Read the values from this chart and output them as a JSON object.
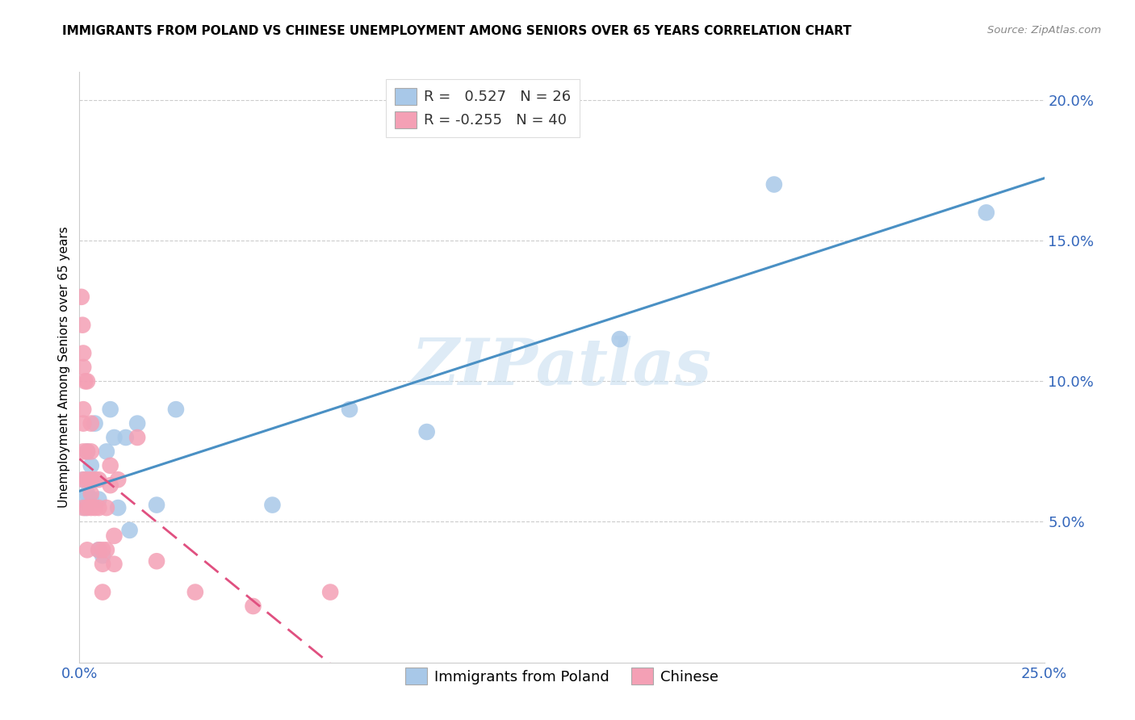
{
  "title": "IMMIGRANTS FROM POLAND VS CHINESE UNEMPLOYMENT AMONG SENIORS OVER 65 YEARS CORRELATION CHART",
  "source": "Source: ZipAtlas.com",
  "ylabel": "Unemployment Among Seniors over 65 years",
  "legend_label1": "Immigrants from Poland",
  "legend_label2": "Chinese",
  "R1": 0.527,
  "N1": 26,
  "R2": -0.255,
  "N2": 40,
  "xlim": [
    0.0,
    0.25
  ],
  "ylim": [
    0.0,
    0.21
  ],
  "yticks": [
    0.05,
    0.1,
    0.15,
    0.2
  ],
  "ytick_labels": [
    "5.0%",
    "10.0%",
    "15.0%",
    "20.0%"
  ],
  "xticks": [
    0.0,
    0.05,
    0.1,
    0.15,
    0.2,
    0.25
  ],
  "xtick_labels": [
    "0.0%",
    "",
    "",
    "",
    "",
    "25.0%"
  ],
  "color_blue": "#a8c8e8",
  "color_blue_fill": "#b8d4ed",
  "color_pink": "#f4a0b5",
  "color_blue_line": "#4a90c4",
  "color_pink_line": "#e05080",
  "watermark_color": "#c8dff0",
  "poland_x": [
    0.0008,
    0.001,
    0.0015,
    0.002,
    0.002,
    0.003,
    0.003,
    0.004,
    0.005,
    0.005,
    0.006,
    0.007,
    0.008,
    0.009,
    0.01,
    0.012,
    0.013,
    0.015,
    0.02,
    0.025,
    0.05,
    0.07,
    0.09,
    0.14,
    0.18,
    0.235
  ],
  "poland_y": [
    0.058,
    0.065,
    0.055,
    0.075,
    0.06,
    0.058,
    0.07,
    0.085,
    0.04,
    0.058,
    0.038,
    0.075,
    0.09,
    0.08,
    0.055,
    0.08,
    0.047,
    0.085,
    0.056,
    0.09,
    0.056,
    0.09,
    0.082,
    0.115,
    0.17,
    0.16
  ],
  "china_x": [
    0.0005,
    0.0008,
    0.001,
    0.001,
    0.001,
    0.001,
    0.001,
    0.001,
    0.001,
    0.0015,
    0.002,
    0.002,
    0.002,
    0.002,
    0.002,
    0.003,
    0.003,
    0.003,
    0.003,
    0.003,
    0.004,
    0.004,
    0.005,
    0.005,
    0.005,
    0.006,
    0.006,
    0.006,
    0.007,
    0.007,
    0.008,
    0.008,
    0.009,
    0.009,
    0.01,
    0.015,
    0.02,
    0.03,
    0.045,
    0.065
  ],
  "china_y": [
    0.13,
    0.12,
    0.11,
    0.105,
    0.09,
    0.085,
    0.075,
    0.065,
    0.055,
    0.1,
    0.1,
    0.075,
    0.065,
    0.055,
    0.04,
    0.085,
    0.075,
    0.065,
    0.06,
    0.055,
    0.065,
    0.055,
    0.065,
    0.055,
    0.04,
    0.04,
    0.035,
    0.025,
    0.055,
    0.04,
    0.07,
    0.063,
    0.045,
    0.035,
    0.065,
    0.08,
    0.036,
    0.025,
    0.02,
    0.025
  ]
}
